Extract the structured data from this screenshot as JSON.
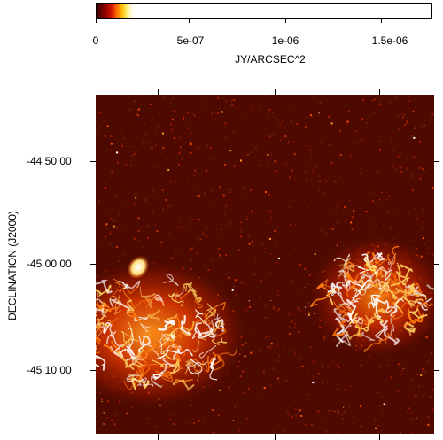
{
  "colorbar": {
    "labels": [
      "0",
      "5e-07",
      "1e-06",
      "1.5e-06"
    ],
    "title": "JY/ARCSEC^2",
    "colormap": [
      "#3a0000",
      "#8a0000",
      "#d41800",
      "#ff6a00",
      "#ffb800",
      "#ffee70",
      "#ffffff"
    ]
  },
  "axes": {
    "ylabel": "DECLINATION  (J2000)",
    "yticks": [
      "-44 50 00",
      "-45 00 00",
      "-45 10 00"
    ]
  }
}
